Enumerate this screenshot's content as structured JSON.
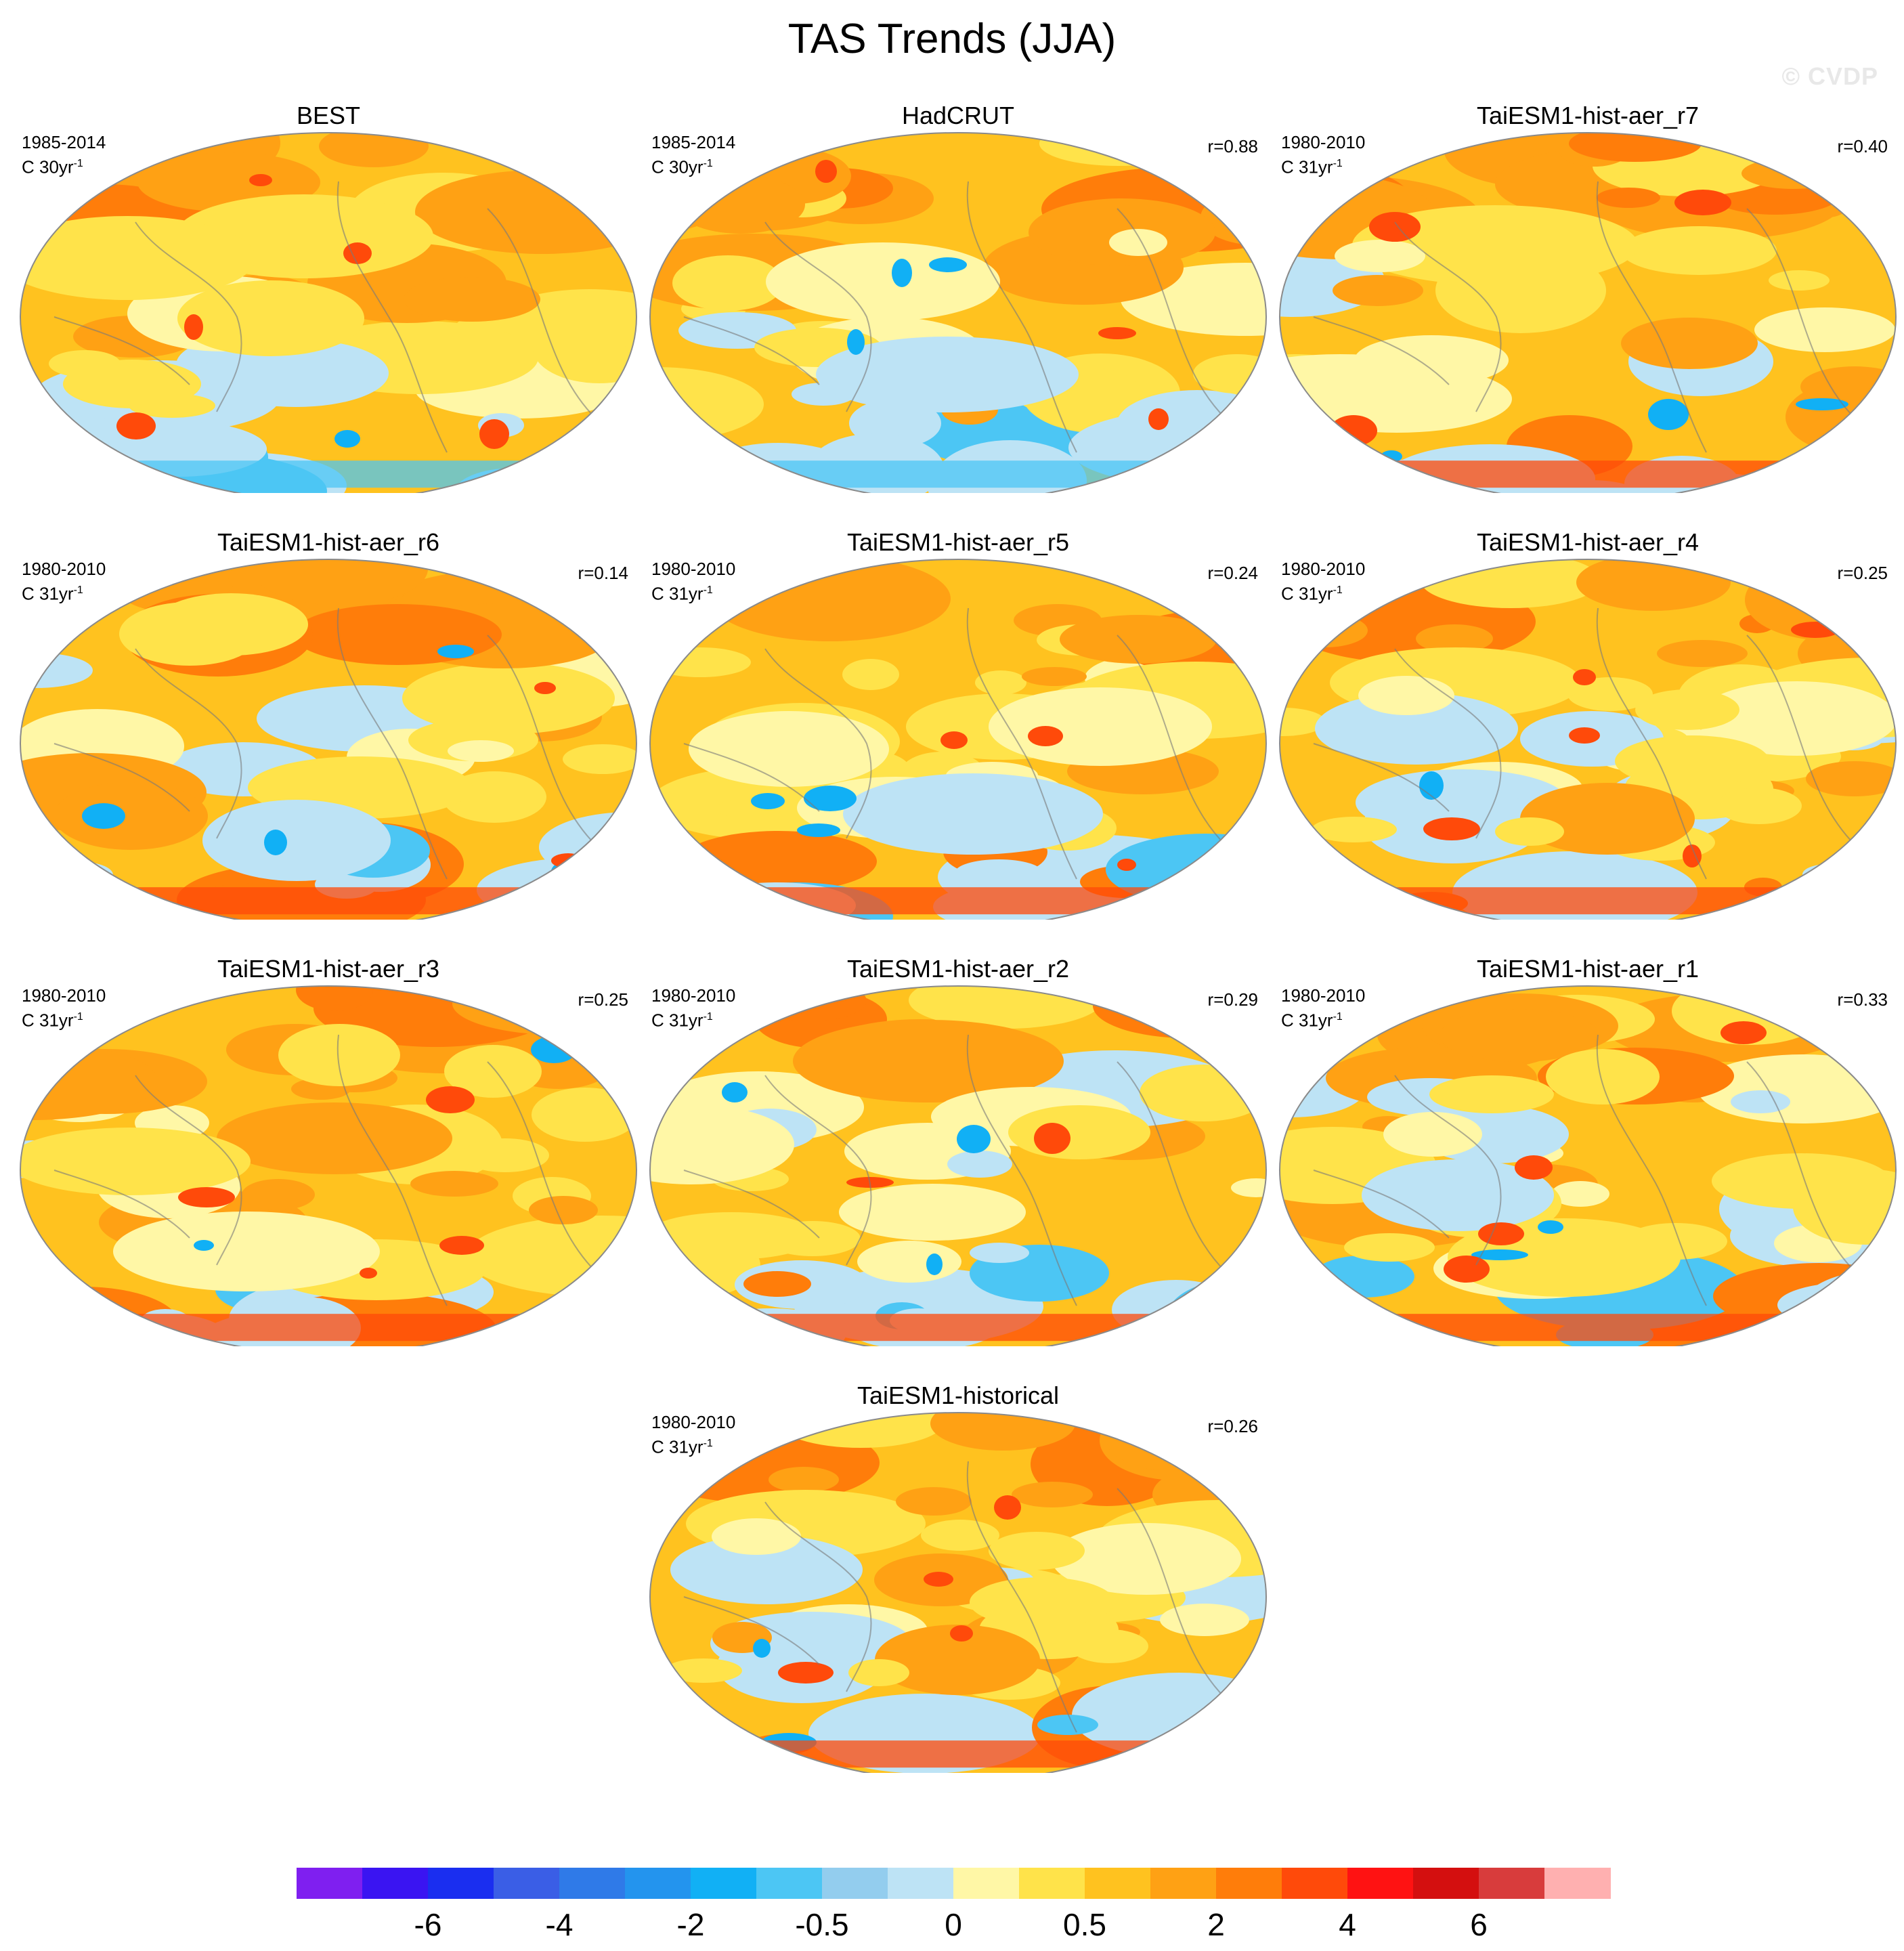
{
  "title": "TAS Trends (JJA)",
  "watermark": "© CVDP",
  "panels": [
    {
      "title": "BEST",
      "period": "1985-2014",
      "units": "C 30yr",
      "units_exp": "-1",
      "corr": "",
      "variant": "obs1"
    },
    {
      "title": "HadCRUT",
      "period": "1985-2014",
      "units": "C 30yr",
      "units_exp": "-1",
      "corr": "r=0.88",
      "variant": "obs2"
    },
    {
      "title": "TaiESM1-hist-aer_r7",
      "period": "1980-2010",
      "units": "C 31yr",
      "units_exp": "-1",
      "corr": "r=0.40",
      "variant": "m7"
    },
    {
      "title": "TaiESM1-hist-aer_r6",
      "period": "1980-2010",
      "units": "C 31yr",
      "units_exp": "-1",
      "corr": "r=0.14",
      "variant": "m6"
    },
    {
      "title": "TaiESM1-hist-aer_r5",
      "period": "1980-2010",
      "units": "C 31yr",
      "units_exp": "-1",
      "corr": "r=0.24",
      "variant": "m5"
    },
    {
      "title": "TaiESM1-hist-aer_r4",
      "period": "1980-2010",
      "units": "C 31yr",
      "units_exp": "-1",
      "corr": "r=0.25",
      "variant": "m4"
    },
    {
      "title": "TaiESM1-hist-aer_r3",
      "period": "1980-2010",
      "units": "C 31yr",
      "units_exp": "-1",
      "corr": "r=0.25",
      "variant": "m3"
    },
    {
      "title": "TaiESM1-hist-aer_r2",
      "period": "1980-2010",
      "units": "C 31yr",
      "units_exp": "-1",
      "corr": "r=0.29",
      "variant": "m2"
    },
    {
      "title": "TaiESM1-hist-aer_r1",
      "period": "1980-2010",
      "units": "C 31yr",
      "units_exp": "-1",
      "corr": "r=0.33",
      "variant": "m1"
    },
    {
      "title": "TaiESM1-historical",
      "period": "1980-2010",
      "units": "C 31yr",
      "units_exp": "-1",
      "corr": "r=0.26",
      "variant": "mh"
    }
  ],
  "colorbar": {
    "colors": [
      "#7f1ff0",
      "#3a14f2",
      "#1a2ef0",
      "#3a5ee6",
      "#2f7ae8",
      "#2394ee",
      "#11b0f5",
      "#4cc6f4",
      "#93cdee",
      "#bde3f5",
      "#fff7a6",
      "#ffe34a",
      "#ffc21f",
      "#ffa114",
      "#ff7d0a",
      "#ff4a0a",
      "#ff1212",
      "#d40f0f",
      "#d83c3c",
      "#ffb0b0"
    ],
    "labels": [
      "-6",
      "-4",
      "-2",
      "-0.5",
      "0",
      "0.5",
      "2",
      "4",
      "6"
    ]
  }
}
